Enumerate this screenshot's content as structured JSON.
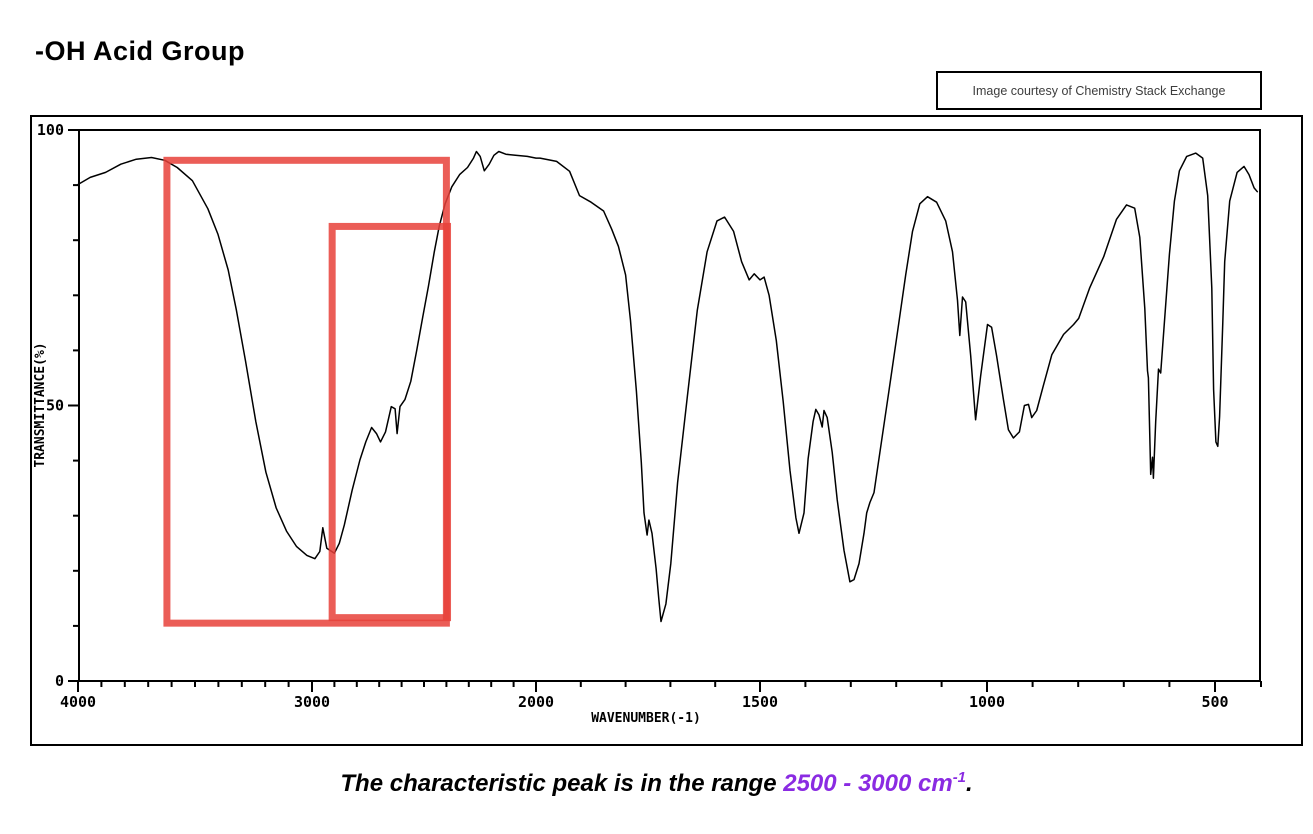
{
  "page": {
    "title": "-OH Acid Group",
    "courtesy_note": "Image courtesy of Chemistry Stack Exchange",
    "caption": {
      "prefix": "The characteristic peak is in the range ",
      "highlight": "2500 - 3000 cm",
      "superscript": "-1",
      "suffix": ".",
      "highlight_color": "#8a2be2"
    }
  },
  "chart_data": {
    "type": "line",
    "title": "",
    "xlabel": "WAVENUMBER(-1)",
    "ylabel": "TRANSMITTANCE(%)",
    "x_axis": {
      "unit": "cm-1",
      "range": [
        4000,
        400
      ],
      "ticks_labeled": [
        4000,
        3000,
        2000,
        1500,
        1000,
        500
      ],
      "minor_step": 100,
      "note": "dual linear scale: 4000-2000 compressed, 2000-400 expanded"
    },
    "y_axis": {
      "range": [
        0,
        100
      ],
      "ticks_labeled": [
        100,
        50,
        0
      ],
      "minor_step": 10
    },
    "grid": false,
    "legend": false,
    "line_color": "#000000",
    "series": [
      {
        "name": "IR transmittance spectrum",
        "points": [
          [
            4000,
            90.1
          ],
          [
            3948,
            91.4
          ],
          [
            3882,
            92.3
          ],
          [
            3817,
            93.8
          ],
          [
            3751,
            94.7
          ],
          [
            3686,
            95.0
          ],
          [
            3629,
            94.5
          ],
          [
            3576,
            93.2
          ],
          [
            3511,
            90.8
          ],
          [
            3445,
            85.7
          ],
          [
            3402,
            81.1
          ],
          [
            3358,
            74.6
          ],
          [
            3323,
            67.3
          ],
          [
            3284,
            58.1
          ],
          [
            3240,
            47.1
          ],
          [
            3197,
            37.9
          ],
          [
            3153,
            31.4
          ],
          [
            3109,
            27.2
          ],
          [
            3066,
            24.4
          ],
          [
            3022,
            22.8
          ],
          [
            2987,
            22.2
          ],
          [
            2965,
            23.5
          ],
          [
            2952,
            27.8
          ],
          [
            2934,
            24.1
          ],
          [
            2900,
            23.2
          ],
          [
            2878,
            25.0
          ],
          [
            2856,
            28.3
          ],
          [
            2821,
            34.6
          ],
          [
            2786,
            40.1
          ],
          [
            2760,
            43.4
          ],
          [
            2734,
            46.0
          ],
          [
            2712,
            44.9
          ],
          [
            2694,
            43.4
          ],
          [
            2672,
            45.2
          ],
          [
            2646,
            49.8
          ],
          [
            2629,
            49.4
          ],
          [
            2620,
            44.9
          ],
          [
            2607,
            49.8
          ],
          [
            2585,
            51.1
          ],
          [
            2559,
            54.4
          ],
          [
            2533,
            59.9
          ],
          [
            2506,
            66.0
          ],
          [
            2480,
            71.7
          ],
          [
            2454,
            77.9
          ],
          [
            2432,
            82.5
          ],
          [
            2406,
            86.6
          ],
          [
            2376,
            89.7
          ],
          [
            2341,
            91.9
          ],
          [
            2306,
            93.2
          ],
          [
            2279,
            94.9
          ],
          [
            2266,
            96.1
          ],
          [
            2249,
            95.2
          ],
          [
            2231,
            92.6
          ],
          [
            2209,
            93.8
          ],
          [
            2188,
            95.4
          ],
          [
            2166,
            96.1
          ],
          [
            2135,
            95.6
          ],
          [
            2092,
            95.4
          ],
          [
            2039,
            95.2
          ],
          [
            2000,
            94.9
          ],
          [
            1991,
            94.9
          ],
          [
            1954,
            94.3
          ],
          [
            1925,
            92.5
          ],
          [
            1903,
            88.1
          ],
          [
            1877,
            86.9
          ],
          [
            1849,
            85.3
          ],
          [
            1831,
            82.0
          ],
          [
            1816,
            78.9
          ],
          [
            1800,
            73.7
          ],
          [
            1789,
            65.4
          ],
          [
            1776,
            52.6
          ],
          [
            1765,
            39.7
          ],
          [
            1759,
            30.5
          ],
          [
            1752,
            26.5
          ],
          [
            1748,
            29.2
          ],
          [
            1741,
            26.8
          ],
          [
            1732,
            20.4
          ],
          [
            1726,
            14.9
          ],
          [
            1721,
            10.8
          ],
          [
            1710,
            14.0
          ],
          [
            1699,
            21.3
          ],
          [
            1684,
            36.0
          ],
          [
            1662,
            51.7
          ],
          [
            1640,
            67.3
          ],
          [
            1618,
            77.9
          ],
          [
            1596,
            83.5
          ],
          [
            1579,
            84.2
          ],
          [
            1559,
            81.6
          ],
          [
            1541,
            76.1
          ],
          [
            1524,
            72.8
          ],
          [
            1513,
            73.9
          ],
          [
            1500,
            72.8
          ],
          [
            1491,
            73.3
          ],
          [
            1480,
            70.0
          ],
          [
            1464,
            61.8
          ],
          [
            1449,
            50.7
          ],
          [
            1434,
            38.2
          ],
          [
            1421,
            29.6
          ],
          [
            1414,
            26.8
          ],
          [
            1403,
            30.5
          ],
          [
            1394,
            40.3
          ],
          [
            1383,
            47.1
          ],
          [
            1377,
            49.3
          ],
          [
            1370,
            48.3
          ],
          [
            1363,
            46.1
          ],
          [
            1359,
            49.1
          ],
          [
            1352,
            47.8
          ],
          [
            1341,
            41.5
          ],
          [
            1330,
            32.9
          ],
          [
            1315,
            23.7
          ],
          [
            1302,
            18.0
          ],
          [
            1293,
            18.4
          ],
          [
            1282,
            21.3
          ],
          [
            1271,
            26.8
          ],
          [
            1265,
            30.5
          ],
          [
            1258,
            32.4
          ],
          [
            1249,
            34.2
          ],
          [
            1236,
            41.5
          ],
          [
            1216,
            52.6
          ],
          [
            1194,
            65.1
          ],
          [
            1179,
            73.7
          ],
          [
            1164,
            81.6
          ],
          [
            1148,
            86.6
          ],
          [
            1131,
            87.9
          ],
          [
            1111,
            86.9
          ],
          [
            1091,
            83.5
          ],
          [
            1076,
            77.9
          ],
          [
            1065,
            69.1
          ],
          [
            1060,
            62.7
          ],
          [
            1054,
            69.7
          ],
          [
            1047,
            68.8
          ],
          [
            1036,
            59.0
          ],
          [
            1025,
            47.4
          ],
          [
            1014,
            55.3
          ],
          [
            999,
            64.7
          ],
          [
            990,
            64.2
          ],
          [
            979,
            59.0
          ],
          [
            964,
            51.1
          ],
          [
            953,
            45.6
          ],
          [
            942,
            44.1
          ],
          [
            929,
            45.2
          ],
          [
            918,
            50.0
          ],
          [
            909,
            50.2
          ],
          [
            902,
            47.8
          ],
          [
            891,
            49.1
          ],
          [
            876,
            53.7
          ],
          [
            858,
            59.2
          ],
          [
            832,
            62.9
          ],
          [
            810,
            64.7
          ],
          [
            799,
            65.8
          ],
          [
            775,
            71.3
          ],
          [
            744,
            77.0
          ],
          [
            716,
            83.8
          ],
          [
            694,
            86.4
          ],
          [
            676,
            85.8
          ],
          [
            665,
            80.5
          ],
          [
            654,
            67.6
          ],
          [
            648,
            56.3
          ],
          [
            646,
            55.0
          ],
          [
            641,
            37.5
          ],
          [
            637,
            40.6
          ],
          [
            635,
            36.8
          ],
          [
            630,
            47.1
          ],
          [
            624,
            56.6
          ],
          [
            619,
            55.9
          ],
          [
            611,
            65.1
          ],
          [
            600,
            77.4
          ],
          [
            589,
            87.1
          ],
          [
            578,
            92.6
          ],
          [
            562,
            95.2
          ],
          [
            542,
            95.8
          ],
          [
            527,
            94.9
          ],
          [
            516,
            88.1
          ],
          [
            507,
            71.3
          ],
          [
            503,
            52.9
          ],
          [
            498,
            43.4
          ],
          [
            494,
            42.6
          ],
          [
            490,
            48.0
          ],
          [
            483,
            65.1
          ],
          [
            479,
            76.1
          ],
          [
            468,
            87.1
          ],
          [
            452,
            92.3
          ],
          [
            437,
            93.4
          ],
          [
            426,
            91.9
          ],
          [
            415,
            89.5
          ],
          [
            408,
            88.8
          ]
        ]
      }
    ],
    "highlight_boxes": [
      {
        "label": "broad O-H acid band region",
        "w_from": 3620,
        "w_to": 2400,
        "t_from": 10.5,
        "t_to": 94.5,
        "color": "#e8413a"
      },
      {
        "label": "2500-3000 characteristic range",
        "w_from": 2910,
        "w_to": 2395,
        "t_from": 11.5,
        "t_to": 82.5,
        "color": "#e8413a"
      }
    ]
  }
}
